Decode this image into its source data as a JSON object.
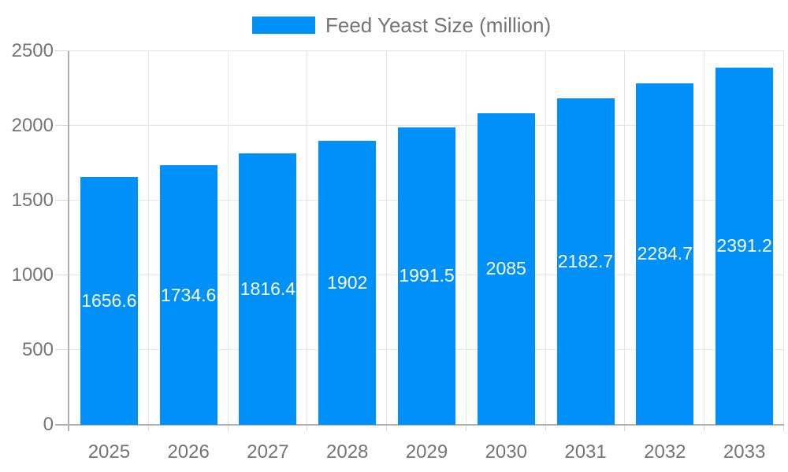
{
  "chart_data": {
    "type": "bar",
    "title": "Feed Yeast Size (million)",
    "legend_position": "top",
    "grid": true,
    "categories": [
      "2025",
      "2026",
      "2027",
      "2028",
      "2029",
      "2030",
      "2031",
      "2032",
      "2033"
    ],
    "series": [
      {
        "name": "Feed Yeast Size (million)",
        "values": [
          1656.6,
          1734.6,
          1816.4,
          1902,
          1991.5,
          2085,
          2182.7,
          2284.7,
          2391.2
        ],
        "value_labels": [
          "1656.6",
          "1734.6",
          "1816.4",
          "1902",
          "1991.5",
          "2085",
          "2182.7",
          "2284.7",
          "2391.2"
        ]
      }
    ],
    "xlabel": "",
    "ylabel": "",
    "ylim": [
      0,
      2500
    ],
    "yticks": [
      0,
      500,
      1000,
      1500,
      2000,
      2500
    ],
    "ytick_labels": [
      "0",
      "500",
      "1000",
      "1500",
      "2000",
      "2500"
    ],
    "colors": {
      "bar": "#0090f9",
      "grid": "#e6e6e6",
      "axis": "#b0b0b0",
      "tick": "#d9d9d9",
      "label": "#757575",
      "value_label": "#ffffff",
      "background": "#ffffff"
    }
  }
}
